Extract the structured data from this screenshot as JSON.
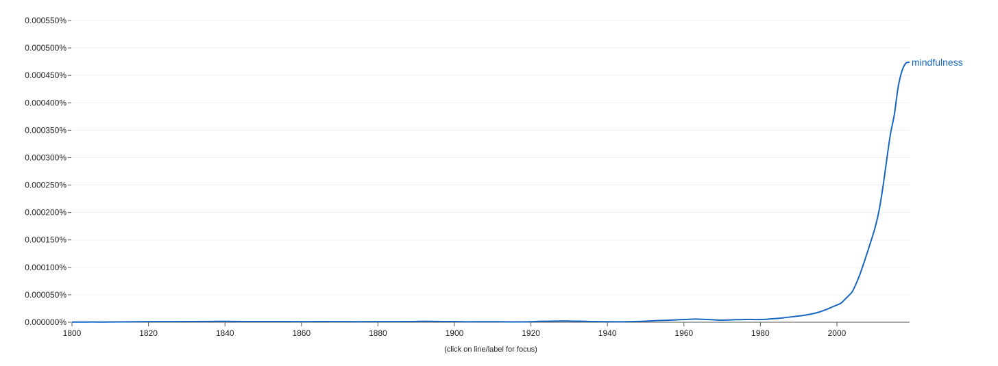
{
  "chart_data": {
    "type": "line",
    "caption": "(click on line/label for focus)",
    "x_ticks": [
      "1800",
      "1820",
      "1840",
      "1860",
      "1880",
      "1900",
      "1920",
      "1940",
      "1960",
      "1980",
      "2000"
    ],
    "y_ticks": [
      "0.000000%",
      "0.000050%",
      "0.000100%",
      "0.000150%",
      "0.000200%",
      "0.000250%",
      "0.000300%",
      "0.000350%",
      "0.000400%",
      "0.000450%",
      "0.000500%",
      "0.000550%"
    ],
    "xlim": [
      1800,
      2019
    ],
    "ylim": [
      0,
      0.00055
    ],
    "grid": true,
    "colors": {
      "series": "#1565c0",
      "grid": "#efefef",
      "axis": "#555555"
    },
    "series": [
      {
        "name": "mindfulness",
        "x": [
          1800,
          1805,
          1810,
          1815,
          1820,
          1825,
          1830,
          1835,
          1840,
          1845,
          1850,
          1855,
          1860,
          1865,
          1870,
          1875,
          1880,
          1885,
          1888,
          1890,
          1893,
          1895,
          1897,
          1900,
          1903,
          1905,
          1910,
          1915,
          1918,
          1920,
          1923,
          1926,
          1928,
          1930,
          1933,
          1936,
          1940,
          1943,
          1946,
          1950,
          1953,
          1956,
          1959,
          1961,
          1963,
          1965,
          1967,
          1969,
          1971,
          1973,
          1975,
          1977,
          1979,
          1981,
          1983,
          1985,
          1987,
          1989,
          1991,
          1993,
          1995,
          1997,
          1999,
          2001,
          2002,
          2003,
          2004,
          2005,
          2006,
          2007,
          2008,
          2009,
          2010,
          2011,
          2012,
          2013,
          2014,
          2015,
          2016,
          2017,
          2018,
          2019
        ],
        "values": [
          3e-07,
          4e-07,
          4e-07,
          8e-07,
          1.1e-06,
          1.1e-06,
          1.2e-06,
          1.4e-06,
          1.5e-06,
          1.3e-06,
          1.2e-06,
          1.2e-06,
          1.1e-06,
          1.2e-06,
          1.1e-06,
          1e-06,
          1.1e-06,
          1.1e-06,
          1.2e-06,
          1.4e-06,
          1.6e-06,
          1.4e-06,
          1.3e-06,
          1.2e-06,
          8e-07,
          9e-07,
          1e-06,
          6e-07,
          7e-07,
          1e-06,
          1.7e-06,
          2e-06,
          2.2e-06,
          2.1e-06,
          1.8e-06,
          1.2e-06,
          9e-07,
          8e-07,
          1.1e-06,
          1.9e-06,
          2.9e-06,
          3.6e-06,
          4.6e-06,
          5.2e-06,
          5.8e-06,
          5.3e-06,
          4.7e-06,
          3.8e-06,
          3.9e-06,
          4.5e-06,
          4.7e-06,
          5.2e-06,
          4.9e-06,
          5.1e-06,
          6.3e-06,
          7.3e-06,
          8.8e-06,
          1.05e-05,
          1.22e-05,
          1.45e-05,
          1.78e-05,
          2.25e-05,
          2.85e-05,
          3.45e-05,
          4.1e-05,
          4.8e-05,
          5.55e-05,
          6.98e-05,
          8.7e-05,
          0.000107,
          0.000128,
          0.00015,
          0.000173,
          0.000203,
          0.000245,
          0.000295,
          0.000343,
          0.000378,
          0.000428,
          0.000458,
          0.000472,
          0.000474
        ]
      }
    ]
  }
}
